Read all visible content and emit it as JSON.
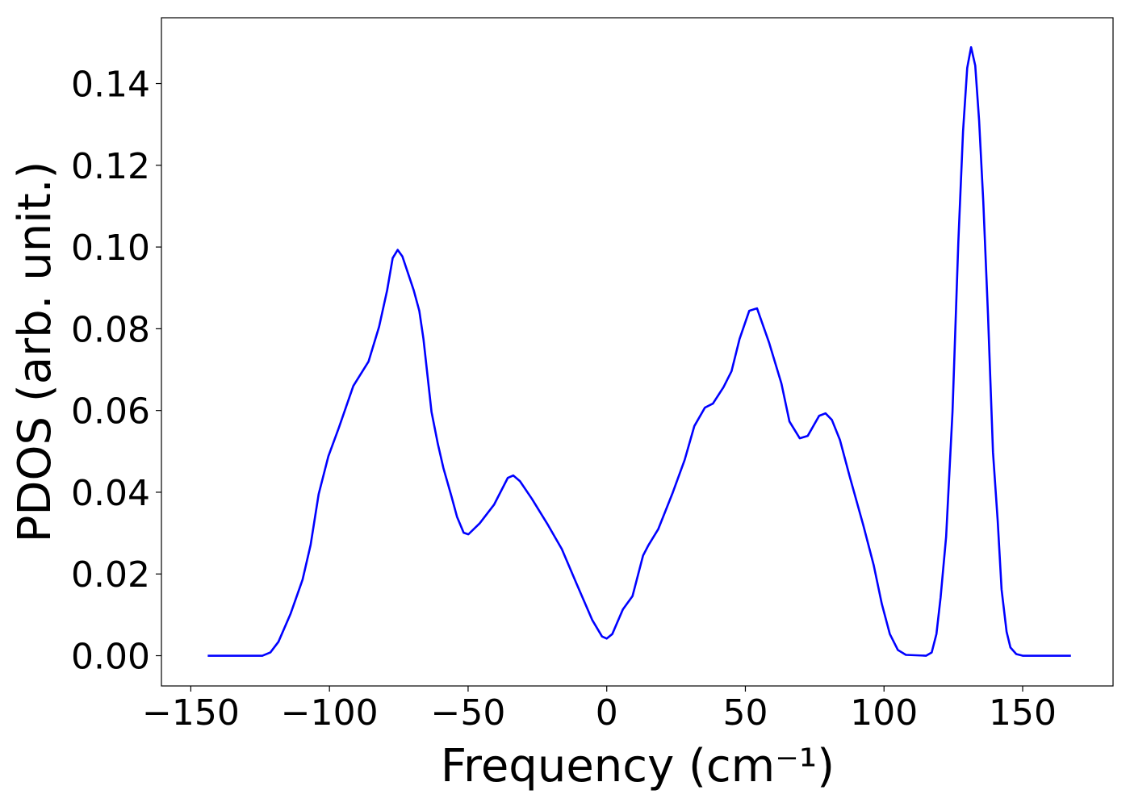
{
  "chart_data": {
    "type": "line",
    "xlabel": "Frequency (cm⁻¹)",
    "ylabel": "PDOS (arb. unit.)",
    "x": [
      -143.9,
      -124.2,
      -121.3,
      -118.4,
      -114,
      -109.7,
      -106.8,
      -103.9,
      -100.4,
      -96.6,
      -91.4,
      -85.9,
      -82.1,
      -79.2,
      -77.2,
      -75.4,
      -73.7,
      -69.6,
      -67.6,
      -66.1,
      -63.2,
      -60.9,
      -58.9,
      -56,
      -54,
      -51.6,
      -49.9,
      -45.8,
      -40.6,
      -35.7,
      -33.7,
      -31.3,
      -27,
      -21.2,
      -16.2,
      -11,
      -5.2,
      -1.7,
      0,
      2,
      5.8,
      9.3,
      13.1,
      15.1,
      18.6,
      23.8,
      28.1,
      31.6,
      35.4,
      38.3,
      42.1,
      45,
      47.9,
      51.4,
      54.2,
      58.6,
      63,
      65.9,
      69.6,
      72.5,
      76.6,
      78.9,
      81.2,
      84.1,
      87.6,
      92.5,
      96.3,
      99.2,
      102.1,
      105,
      107.9,
      115.2,
      117.2,
      118.9,
      120.4,
      122.4,
      124.7,
      126.8,
      128.5,
      130,
      131.4,
      132.9,
      134.3,
      135.8,
      137.5,
      139.3,
      141,
      142.4,
      144.2,
      145.6,
      147.7,
      150,
      167.4
    ],
    "series": [
      {
        "color": "#0000ff",
        "values": [
          0,
          0,
          0.0008,
          0.0034,
          0.0103,
          0.0186,
          0.0271,
          0.0395,
          0.0488,
          0.0558,
          0.066,
          0.072,
          0.0805,
          0.0894,
          0.0973,
          0.0993,
          0.0977,
          0.0894,
          0.0844,
          0.0775,
          0.0597,
          0.0518,
          0.0459,
          0.039,
          0.034,
          0.0301,
          0.0297,
          0.0324,
          0.037,
          0.0435,
          0.0441,
          0.0427,
          0.0384,
          0.032,
          0.0261,
          0.0178,
          0.0087,
          0.0047,
          0.0042,
          0.0053,
          0.0113,
          0.0146,
          0.0245,
          0.0271,
          0.031,
          0.0399,
          0.0479,
          0.0562,
          0.0607,
          0.0617,
          0.0657,
          0.0696,
          0.0775,
          0.0844,
          0.085,
          0.0765,
          0.0666,
          0.0573,
          0.0532,
          0.0538,
          0.0587,
          0.0593,
          0.0577,
          0.0528,
          0.0439,
          0.032,
          0.0221,
          0.0127,
          0.0053,
          0.0014,
          0.0002,
          0,
          0.0008,
          0.0053,
          0.0142,
          0.0291,
          0.0597,
          0.1012,
          0.1283,
          0.1438,
          0.1489,
          0.1444,
          0.1309,
          0.1111,
          0.0834,
          0.0498,
          0.033,
          0.0162,
          0.0059,
          0.002,
          0.0004,
          0,
          0
        ]
      }
    ],
    "xlim": [
      -160.6,
      182.6
    ],
    "ylim": [
      -0.0074,
      0.1561
    ],
    "xticks": [
      {
        "value": -150,
        "label": "−150"
      },
      {
        "value": -100,
        "label": "−100"
      },
      {
        "value": -50,
        "label": "−50"
      },
      0,
      50,
      100,
      150
    ],
    "yticks": [
      {
        "value": 0,
        "label": "0.00"
      },
      {
        "value": 0.02,
        "label": "0.02"
      },
      {
        "value": 0.04,
        "label": "0.04"
      },
      {
        "value": 0.06,
        "label": "0.06"
      },
      {
        "value": 0.08,
        "label": "0.08"
      },
      {
        "value": 0.1,
        "label": "0.10"
      },
      {
        "value": 0.12,
        "label": "0.12"
      },
      {
        "value": 0.14,
        "label": "0.14"
      }
    ],
    "grid": false
  }
}
